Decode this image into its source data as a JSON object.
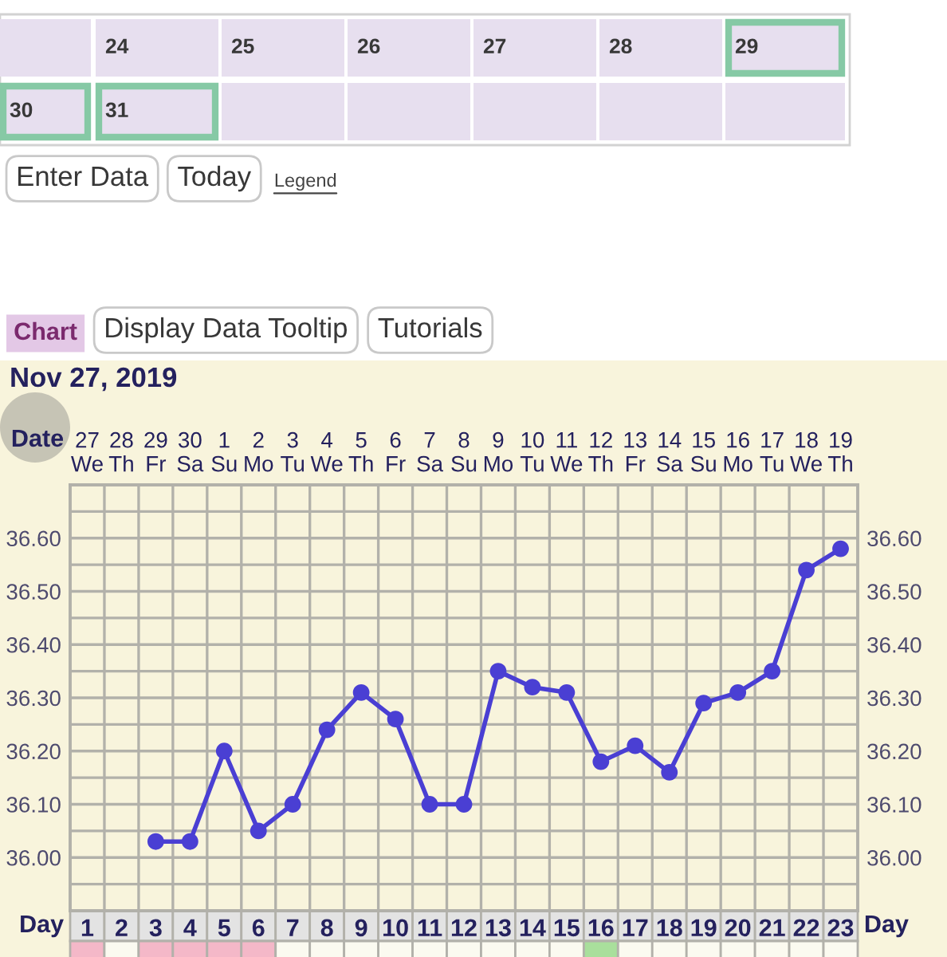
{
  "chart_data": {
    "type": "line",
    "title": "Nov 27, 2019",
    "xlabel": "Day",
    "x2label": "Date",
    "x": [
      3,
      4,
      5,
      6,
      7,
      8,
      9,
      10,
      11,
      12,
      13,
      14,
      15,
      16,
      17,
      18,
      19,
      20,
      21,
      22,
      23
    ],
    "series": [
      {
        "color": "#4a3fd3",
        "values": [
          36.03,
          36.03,
          36.2,
          36.05,
          36.1,
          36.24,
          36.31,
          36.26,
          36.1,
          36.1,
          36.35,
          36.32,
          36.31,
          36.18,
          36.21,
          36.16,
          36.29,
          36.31,
          36.35,
          36.54,
          36.58
        ]
      }
    ],
    "xlim": [
      0.5,
      23.5
    ],
    "xticks": [
      1,
      2,
      3,
      4,
      5,
      6,
      7,
      8,
      9,
      10,
      11,
      12,
      13,
      14,
      15,
      16,
      17,
      18,
      19,
      20,
      21,
      22,
      23
    ],
    "x2lim": [
      "2019-11-26T12:00",
      "2019-12-19T12:00"
    ],
    "x2ticks": [
      {
        "value": "2019-11-27",
        "label": "27\nWe"
      },
      {
        "value": "2019-11-28",
        "label": "28\nTh"
      },
      {
        "value": "2019-11-29",
        "label": "29\nFr"
      },
      {
        "value": "2019-11-30",
        "label": "30\nSa"
      },
      {
        "value": "2019-12-01",
        "label": "1\nSu"
      },
      {
        "value": "2019-12-02",
        "label": "2\nMo"
      },
      {
        "value": "2019-12-03",
        "label": "3\nTu"
      },
      {
        "value": "2019-12-04",
        "label": "4\nWe"
      },
      {
        "value": "2019-12-05",
        "label": "5\nTh"
      },
      {
        "value": "2019-12-06",
        "label": "6\nFr"
      },
      {
        "value": "2019-12-07",
        "label": "7\nSa"
      },
      {
        "value": "2019-12-08",
        "label": "8\nSu"
      },
      {
        "value": "2019-12-09",
        "label": "9\nMo"
      },
      {
        "value": "2019-12-10",
        "label": "10\nTu"
      },
      {
        "value": "2019-12-11",
        "label": "11\nWe"
      },
      {
        "value": "2019-12-12",
        "label": "12\nTh"
      },
      {
        "value": "2019-12-13",
        "label": "13\nFr"
      },
      {
        "value": "2019-12-14",
        "label": "14\nSa"
      },
      {
        "value": "2019-12-15",
        "label": "15\nSu"
      },
      {
        "value": "2019-12-16",
        "label": "16\nMo"
      },
      {
        "value": "2019-12-17",
        "label": "17\nTu"
      },
      {
        "value": "2019-12-18",
        "label": "18\nWe"
      },
      {
        "value": "2019-12-19",
        "label": "19\nTh"
      }
    ],
    "ylim": [
      35.9,
      36.7
    ],
    "yticks": [
      {
        "value": 35.95,
        "label": null
      },
      {
        "value": 36.0,
        "label": "36.00"
      },
      {
        "value": 36.05,
        "label": null
      },
      {
        "value": 36.1,
        "label": "36.10"
      },
      {
        "value": 36.15,
        "label": null
      },
      {
        "value": 36.2,
        "label": "36.20"
      },
      {
        "value": 36.25,
        "label": null
      },
      {
        "value": 36.3,
        "label": "36.30"
      },
      {
        "value": 36.35,
        "label": null
      },
      {
        "value": 36.4,
        "label": "36.40"
      },
      {
        "value": 36.45,
        "label": null
      },
      {
        "value": 36.5,
        "label": "36.50"
      },
      {
        "value": 36.55,
        "label": null
      },
      {
        "value": 36.6,
        "label": "36.60"
      },
      {
        "value": 36.65,
        "label": null
      }
    ],
    "y2lim": [
      35.9,
      36.7
    ],
    "y2ticks": [
      {
        "value": 35.95,
        "label": null
      },
      {
        "value": 36.0,
        "label": "36.00"
      },
      {
        "value": 36.05,
        "label": null
      },
      {
        "value": 36.1,
        "label": "36.10"
      },
      {
        "value": 36.15,
        "label": null
      },
      {
        "value": 36.2,
        "label": "36.20"
      },
      {
        "value": 36.25,
        "label": null
      },
      {
        "value": 36.3,
        "label": "36.30"
      },
      {
        "value": 36.35,
        "label": null
      },
      {
        "value": 36.4,
        "label": "36.40"
      },
      {
        "value": 36.45,
        "label": null
      },
      {
        "value": 36.5,
        "label": "36.50"
      },
      {
        "value": 36.55,
        "label": null
      },
      {
        "value": 36.6,
        "label": "36.60"
      },
      {
        "value": 36.65,
        "label": null
      }
    ],
    "grid": true,
    "marker": "circle",
    "line_style": "solid",
    "annotations": [
      "24",
      "25",
      "26",
      "27",
      "28",
      "29",
      "30",
      "31",
      "Enter Data",
      "Today",
      "Legend",
      "Chart",
      "Display Data Tooltip",
      "Tutorials"
    ]
  }
}
